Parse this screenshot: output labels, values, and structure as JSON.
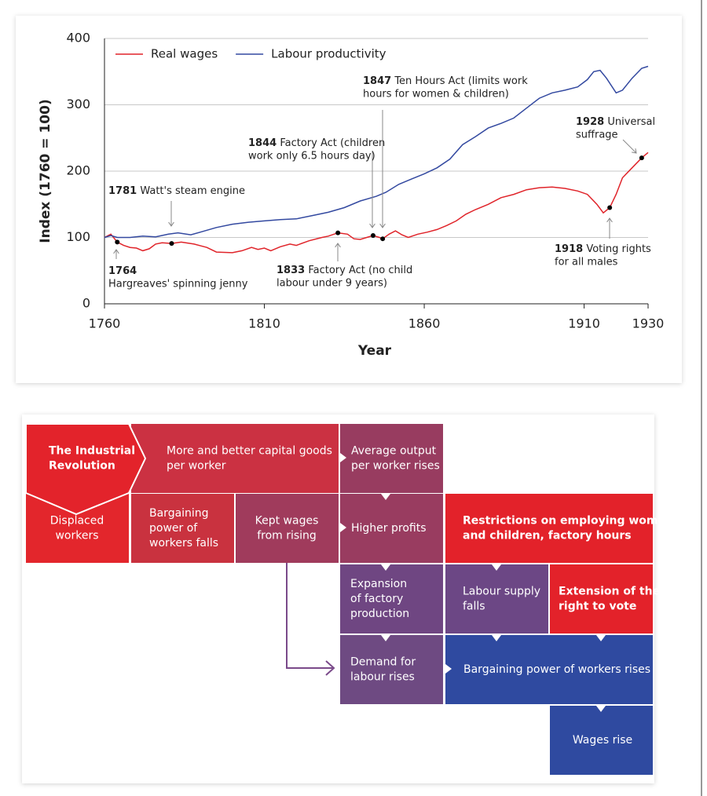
{
  "chart_data": {
    "type": "line",
    "x_label": "Year",
    "y_label": "Index (1760 = 100)",
    "xlim": [
      1760,
      1930
    ],
    "xticks": [
      1760,
      1810,
      1860,
      1910,
      1930
    ],
    "ylim": [
      0,
      400
    ],
    "yticks": [
      0,
      100,
      200,
      300,
      400
    ],
    "grid": true,
    "legend": "top-left",
    "series": [
      {
        "name": "Real wages",
        "color": "#e0242a",
        "x": [
          1760,
          1762,
          1764,
          1766,
          1768,
          1770,
          1772,
          1774,
          1776,
          1778,
          1781,
          1784,
          1788,
          1792,
          1795,
          1800,
          1803,
          1806,
          1808,
          1810,
          1812,
          1815,
          1818,
          1820,
          1824,
          1828,
          1830,
          1833,
          1836,
          1838,
          1840,
          1842,
          1844,
          1846,
          1847,
          1849,
          1851,
          1853,
          1855,
          1858,
          1861,
          1864,
          1867,
          1870,
          1873,
          1876,
          1880,
          1884,
          1888,
          1892,
          1896,
          1900,
          1904,
          1908,
          1911,
          1914,
          1916,
          1918,
          1920,
          1922,
          1925,
          1928,
          1930
        ],
        "values": [
          100,
          105,
          93,
          88,
          85,
          84,
          80,
          83,
          90,
          92,
          91,
          93,
          90,
          85,
          78,
          77,
          80,
          85,
          82,
          84,
          80,
          86,
          90,
          88,
          95,
          100,
          102,
          107,
          105,
          98,
          97,
          100,
          103,
          100,
          98,
          105,
          110,
          104,
          100,
          105,
          108,
          112,
          118,
          125,
          135,
          142,
          150,
          160,
          165,
          172,
          175,
          176,
          174,
          170,
          165,
          150,
          137,
          145,
          165,
          190,
          205,
          220,
          228
        ]
      },
      {
        "name": "Labour productivity",
        "color": "#3349a0",
        "x": [
          1760,
          1762,
          1764,
          1768,
          1772,
          1776,
          1780,
          1783,
          1787,
          1790,
          1795,
          1800,
          1805,
          1810,
          1815,
          1820,
          1825,
          1830,
          1835,
          1840,
          1845,
          1848,
          1852,
          1856,
          1860,
          1864,
          1868,
          1872,
          1876,
          1880,
          1884,
          1888,
          1892,
          1896,
          1900,
          1904,
          1908,
          1911,
          1913,
          1915,
          1917,
          1920,
          1922,
          1925,
          1928,
          1930
        ],
        "values": [
          100,
          103,
          100,
          100,
          102,
          101,
          105,
          107,
          104,
          108,
          115,
          120,
          123,
          125,
          127,
          128,
          133,
          138,
          145,
          155,
          162,
          168,
          180,
          188,
          196,
          205,
          218,
          240,
          252,
          265,
          272,
          280,
          295,
          310,
          318,
          322,
          327,
          338,
          350,
          352,
          340,
          318,
          322,
          340,
          355,
          358
        ]
      }
    ],
    "events": [
      {
        "x": 1764,
        "y": 93,
        "lines": [
          "Hargreaves' spinning jenny"
        ]
      },
      {
        "x": 1781,
        "y": 91,
        "lines": [
          "Watt's steam engine"
        ]
      },
      {
        "x": 1833,
        "y": 107,
        "lines": [
          "Factory Act (no child",
          "labour under 9 years)"
        ]
      },
      {
        "x": 1844,
        "y": 103,
        "lines": [
          "Factory Act (children",
          "work only 6.5 hours day)"
        ]
      },
      {
        "x": 1847,
        "y": 98,
        "lines": [
          "Ten Hours Act (limits work",
          "hours for women & children)"
        ]
      },
      {
        "x": 1918,
        "y": 145,
        "lines": [
          "Voting rights",
          "for all males"
        ]
      },
      {
        "x": 1928,
        "y": 220,
        "lines": [
          "Universal",
          "suffrage"
        ]
      }
    ]
  },
  "diagram": {
    "nodes": [
      {
        "lines": [
          "The Industrial",
          "Revolution"
        ],
        "bold": true,
        "color": "#e3232b"
      },
      {
        "lines": [
          "More and better capital goods",
          "per worker"
        ],
        "color": "#cb3142"
      },
      {
        "lines": [
          "Average output",
          "per worker rises"
        ],
        "color": "#983c60"
      },
      {
        "lines": [
          "Displaced",
          "workers"
        ],
        "color": "#e3262c"
      },
      {
        "lines": [
          "Bargaining",
          "power of",
          "workers falls"
        ],
        "color": "#c9323f"
      },
      {
        "lines": [
          "Kept wages",
          "from rising"
        ],
        "color": "#a03b5c"
      },
      {
        "lines": [
          "Higher profits"
        ],
        "color": "#993c60"
      },
      {
        "lines": [
          "Restrictions on employing women",
          "and children, factory hours"
        ],
        "bold": true,
        "color": "#e3222a"
      },
      {
        "lines": [
          "Expansion",
          "of factory",
          "production"
        ],
        "color": "#6f4682"
      },
      {
        "lines": [
          "Labour supply",
          "falls"
        ],
        "color": "#6c4785"
      },
      {
        "lines": [
          "Extension of the",
          "right to vote"
        ],
        "bold": true,
        "color": "#e3222a"
      },
      {
        "lines": [
          "Demand for",
          "labour rises"
        ],
        "color": "#6e4a82"
      },
      {
        "lines": [
          "Bargaining power of workers rises"
        ],
        "color": "#2f4aa0"
      },
      {
        "lines": [
          "Wages rise"
        ],
        "color": "#2f4aa0"
      }
    ]
  }
}
